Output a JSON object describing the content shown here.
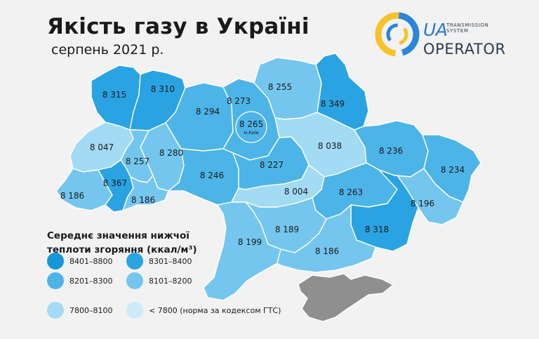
{
  "header": {
    "title": "Якість газу в Україні",
    "subtitle": "серпень 2021 р."
  },
  "logo": {
    "ua": "UA",
    "ts_line1": "TRANSMISSION",
    "ts_line2": "SYSTEM",
    "operator": "OPERATOR",
    "colors": {
      "ring_yellow": "#f7c22a",
      "ring_blue": "#2a86d6",
      "text_dark": "#2f3a4a"
    }
  },
  "legend": {
    "title": "Середнє значення нижчої теплоти згоряння (ккал/м³)",
    "items": [
      {
        "label": "8401–8800",
        "color": "#1596d8"
      },
      {
        "label": "8301–8400",
        "color": "#2aa3e2"
      },
      {
        "label": "8201–8300",
        "color": "#4db4e8"
      },
      {
        "label": "8101–8200",
        "color": "#74c6ee"
      },
      {
        "label": "7800–8100",
        "color": "#a3daf4"
      },
      {
        "label": "< 7800 (норма за кодексом ГТС)",
        "color": "#cdeaf8"
      }
    ]
  },
  "map": {
    "crimea_color": "#8f8f8f",
    "kyiv_city": {
      "value": "8 265",
      "label": "м.Київ"
    },
    "regions": [
      {
        "name": "Волинська",
        "value": "8 315"
      },
      {
        "name": "Рівненська",
        "value": "8 310"
      },
      {
        "name": "Житомирська",
        "value": "8 294"
      },
      {
        "name": "Київська",
        "value": "8 273"
      },
      {
        "name": "Чернігівська",
        "value": "8 255"
      },
      {
        "name": "Сумська",
        "value": "8 349"
      },
      {
        "name": "Львівська",
        "value": "8 047"
      },
      {
        "name": "Хмельницька",
        "value": "8 280"
      },
      {
        "name": "Тернопільська",
        "value": "8 257"
      },
      {
        "name": "Вінницька",
        "value": "8 246"
      },
      {
        "name": "Черкаська",
        "value": "8 227"
      },
      {
        "name": "Полтавська",
        "value": "8 038"
      },
      {
        "name": "Харківська",
        "value": "8 236"
      },
      {
        "name": "Луганська",
        "value": "8 234"
      },
      {
        "name": "Закарпатська",
        "value": "8 186"
      },
      {
        "name": "Івано-Франківська",
        "value": "8 367"
      },
      {
        "name": "Чернівецька",
        "value": "8 186"
      },
      {
        "name": "Кіровоградська",
        "value": "8 004"
      },
      {
        "name": "Дніпропетровська",
        "value": "8 263"
      },
      {
        "name": "Донецька",
        "value": "8 318"
      },
      {
        "name": "Запорізька",
        "value": "8 196"
      },
      {
        "name": "Миколаївська",
        "value": "8 189"
      },
      {
        "name": "Одеська",
        "value": "8 199"
      },
      {
        "name": "Херсонська",
        "value": "8 186"
      }
    ]
  }
}
